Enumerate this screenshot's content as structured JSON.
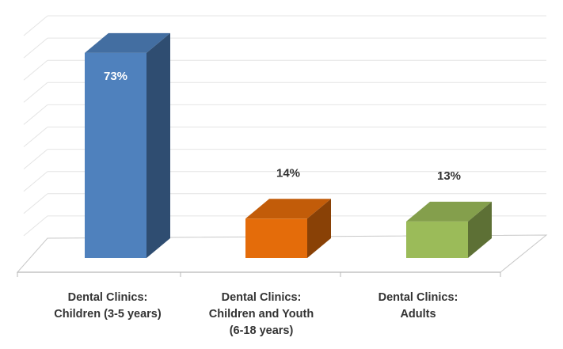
{
  "chart_data": {
    "type": "bar",
    "categories": [
      [
        "Dental Clinics:",
        "Children (3-5 years)"
      ],
      [
        "Dental Clinics:",
        "Children and Youth",
        "(6-18 years)"
      ],
      [
        "Dental Clinics:",
        "Adults"
      ]
    ],
    "values": [
      73,
      14,
      13
    ],
    "value_labels": [
      "73%",
      "14%",
      "13%"
    ],
    "colors": [
      "#4f81bd",
      "#e46c0a",
      "#9bbb59"
    ],
    "ylim": [
      0,
      100
    ],
    "grid": true,
    "title": "",
    "xlabel": "",
    "ylabel": ""
  }
}
